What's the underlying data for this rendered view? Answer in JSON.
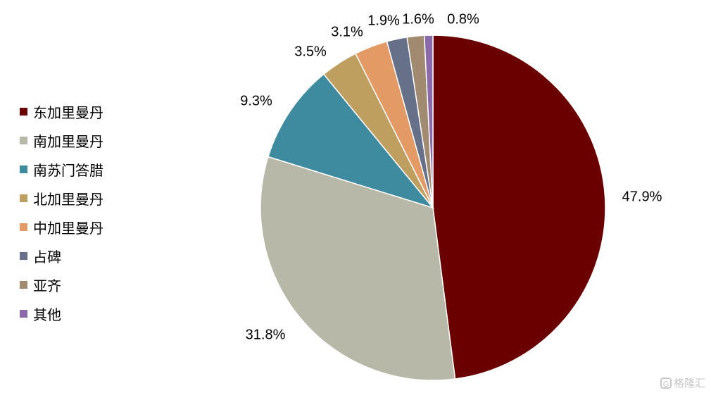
{
  "chart_data": {
    "type": "pie",
    "title": "",
    "start_angle": "12 o'clock",
    "direction": "clockwise",
    "slices": [
      {
        "name": "东加里曼丹",
        "value": 47.9,
        "label": "47.9%",
        "color": "#6b0000"
      },
      {
        "name": "南加里曼丹",
        "value": 31.8,
        "label": "31.8%",
        "color": "#b8b8a8"
      },
      {
        "name": "南苏门答腊",
        "value": 9.3,
        "label": "9.3%",
        "color": "#3e8a9e"
      },
      {
        "name": "北加里曼丹",
        "value": 3.5,
        "label": "3.5%",
        "color": "#bf9f5f"
      },
      {
        "name": "中加里曼丹",
        "value": 3.1,
        "label": "3.1%",
        "color": "#e39a64"
      },
      {
        "name": "占碑",
        "value": 1.9,
        "label": "1.9%",
        "color": "#667089"
      },
      {
        "name": "亚齐",
        "value": 1.6,
        "label": "1.6%",
        "color": "#a08a70"
      },
      {
        "name": "其他",
        "value": 0.8,
        "label": "0.8%",
        "color": "#8a6aa8"
      }
    ],
    "legend_position": "left"
  },
  "watermark": {
    "icon": "g-logo-icon",
    "text": "格隆汇"
  }
}
